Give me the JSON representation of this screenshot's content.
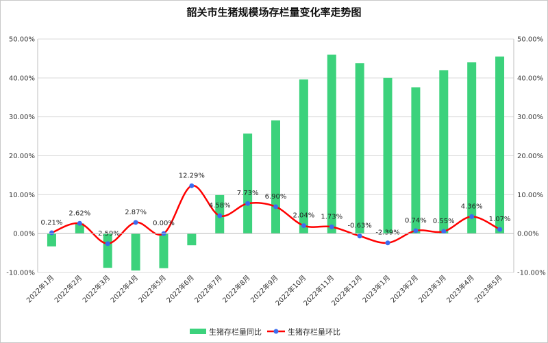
{
  "chart_data": {
    "type": "bar",
    "title": "韶关市生猪规模场存栏量变化率走势图",
    "categories": [
      "2022年1月",
      "2022年2月",
      "2022年3月",
      "2022年4月",
      "2022年5月",
      "2022年6月",
      "2022年7月",
      "2022年8月",
      "2022年9月",
      "2022年10月",
      "2022年11月",
      "2022年12月",
      "2023年1月",
      "2023年2月",
      "2023年3月",
      "2023年4月",
      "2023年5月"
    ],
    "y_ticks": [
      "50.00%",
      "40.00%",
      "30.00%",
      "20.00%",
      "10.00%",
      "0.00%",
      "-10.00%"
    ],
    "ylim": [
      -10,
      50
    ],
    "grid": true,
    "legend_position": "bottom",
    "series": [
      {
        "name": "生猪存栏量同比",
        "kind": "bar",
        "color": "#3cd27c",
        "values": [
          -3.3,
          2.6,
          -8.8,
          -9.5,
          -8.9,
          -3.0,
          9.9,
          25.7,
          29.1,
          39.6,
          46.0,
          43.8,
          40.0,
          37.6,
          42.0,
          44.0,
          45.5
        ]
      },
      {
        "name": "生猪存栏量环比",
        "kind": "line",
        "color": "#ff0000",
        "marker_color": "#3b6cf0",
        "values": [
          0.21,
          2.62,
          -2.59,
          2.87,
          0.0,
          12.29,
          4.58,
          7.73,
          6.9,
          2.04,
          1.73,
          -0.63,
          -2.39,
          0.74,
          0.55,
          4.36,
          1.07
        ],
        "labels": [
          "0.21%",
          "2.62%",
          "-2.59%",
          "2.87%",
          "0.00%",
          "12.29%",
          "4.58%",
          "7.73%",
          "6.90%",
          "2.04%",
          "1.73%",
          "-0.63%",
          "-2.39%",
          "0.74%",
          "0.55%",
          "4.36%",
          "1.07%"
        ]
      }
    ]
  }
}
